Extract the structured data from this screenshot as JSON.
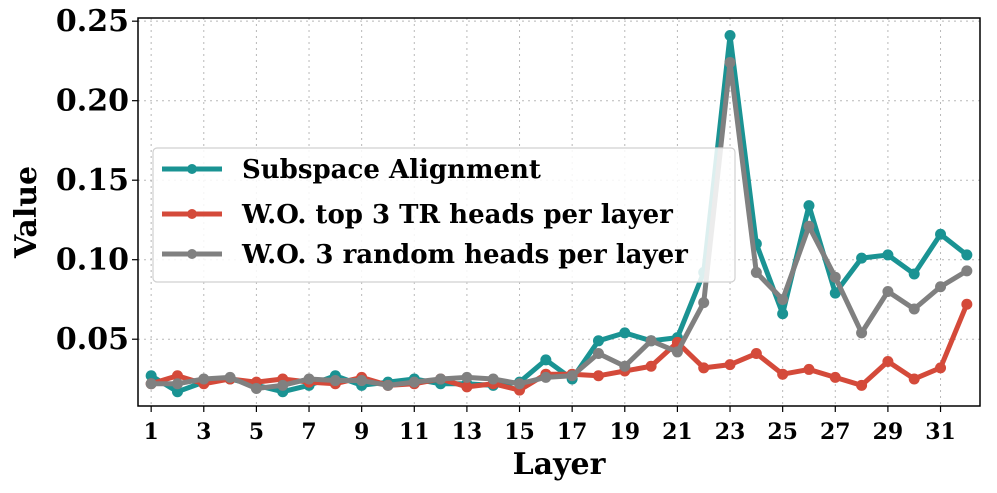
{
  "chart_data": {
    "type": "line",
    "title": "",
    "xlabel": "Layer",
    "ylabel": "Value",
    "xlim": [
      0.5,
      32.5
    ],
    "ylim": [
      0.008,
      0.252
    ],
    "x_ticks": [
      1,
      3,
      5,
      7,
      9,
      11,
      13,
      15,
      17,
      19,
      21,
      23,
      25,
      27,
      29,
      31
    ],
    "x_tick_labels": [
      "1",
      "3",
      "5",
      "7",
      "9",
      "11",
      "13",
      "15",
      "17",
      "19",
      "21",
      "23",
      "25",
      "27",
      "29",
      "31"
    ],
    "y_ticks": [
      0.05,
      0.1,
      0.15,
      0.2,
      0.25
    ],
    "y_tick_labels": [
      "0.05",
      "0.10",
      "0.15",
      "0.20",
      "0.25"
    ],
    "grid": true,
    "legend_position": "center-left",
    "x": [
      1,
      2,
      3,
      4,
      5,
      6,
      7,
      8,
      9,
      10,
      11,
      12,
      13,
      14,
      15,
      16,
      17,
      18,
      19,
      20,
      21,
      22,
      23,
      24,
      25,
      26,
      27,
      28,
      29,
      30,
      31,
      32
    ],
    "series": [
      {
        "name": "Subspace Alignment",
        "color": "#1a9393",
        "values": [
          0.027,
          0.017,
          0.023,
          0.025,
          0.021,
          0.017,
          0.021,
          0.027,
          0.021,
          0.023,
          0.025,
          0.022,
          0.022,
          0.021,
          0.023,
          0.037,
          0.025,
          0.049,
          0.054,
          0.049,
          0.051,
          0.092,
          0.241,
          0.11,
          0.066,
          0.134,
          0.079,
          0.101,
          0.103,
          0.091,
          0.116,
          0.103
        ]
      },
      {
        "name": "W.O. top 3 TR heads per layer",
        "color": "#d44a3a",
        "values": [
          0.022,
          0.027,
          0.022,
          0.025,
          0.023,
          0.025,
          0.023,
          0.022,
          0.026,
          0.021,
          0.022,
          0.025,
          0.02,
          0.022,
          0.018,
          0.028,
          0.028,
          0.027,
          0.03,
          0.033,
          0.048,
          0.032,
          0.034,
          0.041,
          0.028,
          0.031,
          0.026,
          0.021,
          0.036,
          0.025,
          0.032,
          0.072
        ]
      },
      {
        "name": "W.O. 3 random heads per layer",
        "color": "#808080",
        "values": [
          0.022,
          0.022,
          0.025,
          0.026,
          0.019,
          0.021,
          0.025,
          0.024,
          0.024,
          0.021,
          0.023,
          0.025,
          0.026,
          0.025,
          0.022,
          0.026,
          0.027,
          0.041,
          0.033,
          0.049,
          0.042,
          0.073,
          0.224,
          0.092,
          0.075,
          0.121,
          0.089,
          0.054,
          0.08,
          0.069,
          0.083,
          0.093
        ]
      }
    ]
  }
}
